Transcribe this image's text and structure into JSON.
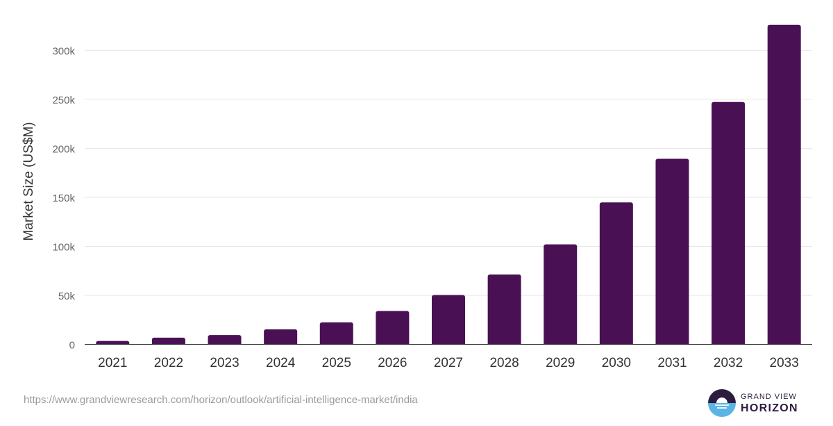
{
  "chart_data": {
    "type": "bar",
    "categories": [
      "2021",
      "2022",
      "2023",
      "2024",
      "2025",
      "2026",
      "2027",
      "2028",
      "2029",
      "2030",
      "2031",
      "2032",
      "2033"
    ],
    "values": [
      3500,
      6800,
      9500,
      15300,
      22400,
      34000,
      50300,
      71300,
      102000,
      144800,
      189300,
      247300,
      326000
    ],
    "title": "",
    "xlabel": "",
    "ylabel": "Market Size (US$M)",
    "ylim": [
      0,
      340000
    ],
    "yticks": [
      0,
      50000,
      100000,
      150000,
      200000,
      250000,
      300000
    ],
    "ytick_labels": [
      "0",
      "50k",
      "100k",
      "150k",
      "200k",
      "250k",
      "300k"
    ],
    "grid": true,
    "bar_color": "#4a1054",
    "grid_color": "#e6e6e6",
    "axis_color": "#333333"
  },
  "footer": {
    "source_url": "https://www.grandviewresearch.com/horizon/outlook/artificial-intelligence-market/india"
  },
  "logo": {
    "line1": "GRAND VIEW",
    "line2": "HORIZON",
    "colors": {
      "top": "#2c1c3d",
      "bottom": "#5ab4e5"
    }
  }
}
